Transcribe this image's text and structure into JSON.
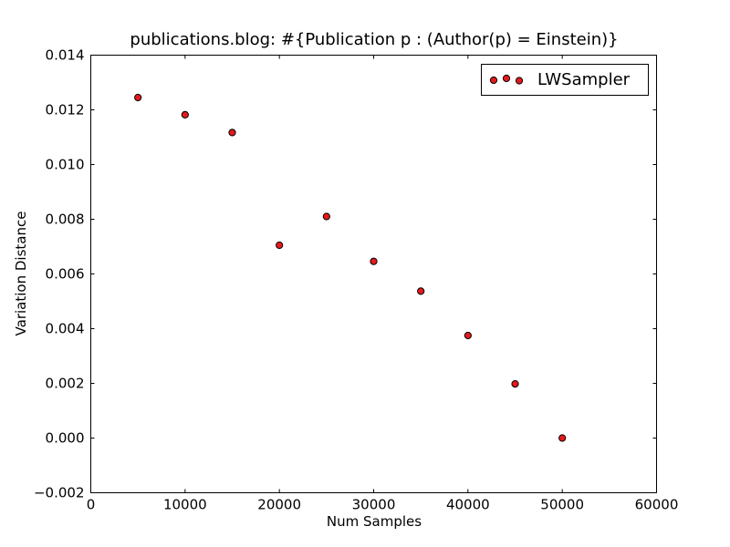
{
  "chart_data": {
    "type": "scatter",
    "title": "publications.blog: #{Publication p : (Author(p) = Einstein)}",
    "xlabel": "Num Samples",
    "ylabel": "Variation Distance",
    "xlim": [
      0,
      60000
    ],
    "ylim": [
      -0.002,
      0.014
    ],
    "xticks": [
      0,
      10000,
      20000,
      30000,
      40000,
      50000,
      60000
    ],
    "xtick_labels": [
      "0",
      "10000",
      "20000",
      "30000",
      "40000",
      "50000",
      "60000"
    ],
    "yticks": [
      -0.002,
      0.0,
      0.002,
      0.004,
      0.006,
      0.008,
      0.01,
      0.012,
      0.014
    ],
    "ytick_labels": [
      "−0.002",
      "0.000",
      "0.002",
      "0.004",
      "0.006",
      "0.008",
      "0.010",
      "0.012",
      "0.014"
    ],
    "grid": false,
    "legend_position": "top-right",
    "series": [
      {
        "name": "LWSampler",
        "color": "#e41a1c",
        "edge_color": "#000000",
        "marker": "circle",
        "x": [
          5000,
          10000,
          15000,
          20000,
          25000,
          30000,
          35000,
          40000,
          45000,
          50000
        ],
        "y": [
          0.01245,
          0.01182,
          0.01117,
          0.00705,
          0.0081,
          0.00646,
          0.00537,
          0.00375,
          0.00198,
          0.0
        ]
      }
    ]
  }
}
